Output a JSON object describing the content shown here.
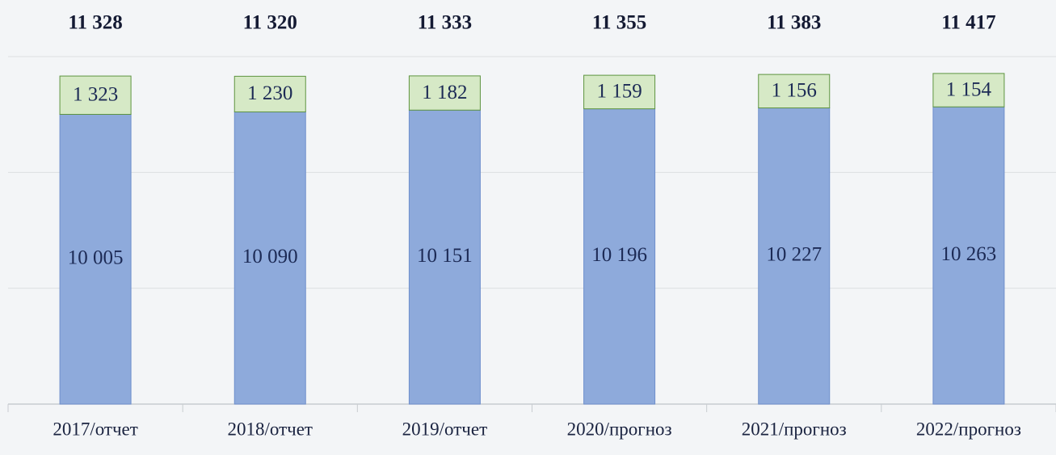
{
  "chart_data": {
    "type": "stacked_bar",
    "categories": [
      "2017/отчет",
      "2018/отчет",
      "2019/отчет",
      "2020/прогноз",
      "2021/прогноз",
      "2022/прогноз"
    ],
    "series": [
      {
        "color": "#8eaadb",
        "values": [
          10005,
          10090,
          10151,
          10196,
          10227,
          10263
        ],
        "value_labels": [
          "10 005",
          "10 090",
          "10 151",
          "10 196",
          "10 227",
          "10 263"
        ]
      },
      {
        "color": "#d6e9c6",
        "values": [
          1323,
          1230,
          1182,
          1159,
          1156,
          1154
        ],
        "value_labels": [
          "1 323",
          "1 230",
          "1 182",
          "1 159",
          "1 156",
          "1 154"
        ]
      }
    ],
    "totals": [
      11328,
      11320,
      11333,
      11355,
      11383,
      11417
    ],
    "total_labels": [
      "11 328",
      "11 320",
      "11 333",
      "11 355",
      "11 383",
      "11 417"
    ],
    "ylim": [
      0,
      12000
    ],
    "yticks": [
      0,
      4000,
      8000,
      12000
    ],
    "grid": true
  }
}
